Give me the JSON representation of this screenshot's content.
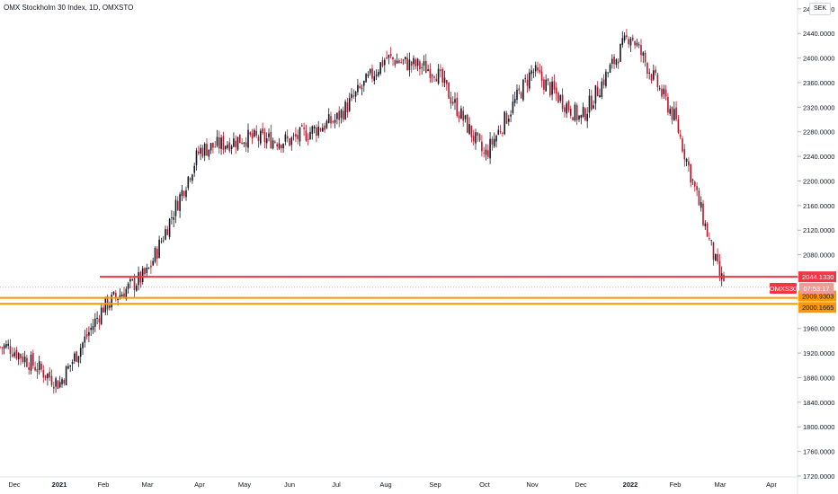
{
  "header": {
    "title": "OMX Stockholm 30 Index, 1D, OMXSTO"
  },
  "currency_button": {
    "label": "SEK"
  },
  "symbol_label": {
    "name": "OMXS30",
    "countdown": "07:53:17",
    "color": "#f23645"
  },
  "colors": {
    "up": "#26a69a",
    "down": "#ef5350",
    "candle_body": "#131722",
    "red_line": "#f23645",
    "orange_line": "#ff9800"
  },
  "chart_data": {
    "type": "candlestick",
    "y_ticks": [
      "1720.0000",
      "1760.0000",
      "1800.0000",
      "1840.0000",
      "1880.0000",
      "1920.0000",
      "1960.0000",
      "2080.0000",
      "2120.0000",
      "2160.0000",
      "2200.0000",
      "2240.0000",
      "2280.0000",
      "2320.0000",
      "2360.0000",
      "2400.0000",
      "2440.0000",
      "2480.0000"
    ],
    "ylim": [
      1720,
      2490
    ],
    "x_labels": [
      "Dec",
      "2021",
      "Feb",
      "Mar",
      "Apr",
      "May",
      "Jun",
      "Jul",
      "Aug",
      "Sep",
      "Oct",
      "Nov",
      "Dec",
      "2022",
      "Feb",
      "Mar",
      "Apr"
    ],
    "bold_x_labels": [
      "2021",
      "2022"
    ],
    "horizontal_levels": [
      {
        "value": 2044.133,
        "label": "2044.1330",
        "color": "#f23645",
        "start_month": "Feb 2021"
      },
      {
        "value": 2009.9303,
        "label": "2009.9303",
        "color": "#ff9800",
        "start_month": "Dec 2020"
      },
      {
        "value": 2000.1665,
        "label": "2000.1665",
        "color": "#ff9800",
        "start_month": "Dec 2020"
      }
    ],
    "current_price": 2027,
    "price_path_months": [
      "Dec",
      "Jan",
      "Feb",
      "Mar",
      "Apr",
      "May",
      "Jun",
      "Jul",
      "Aug",
      "Sep",
      "Oct",
      "Nov",
      "Dec",
      "Jan",
      "Feb",
      "Mar"
    ],
    "price_path_approx": [
      1930,
      1870,
      1995,
      2050,
      2250,
      2270,
      2265,
      2300,
      2400,
      2380,
      2240,
      2380,
      2300,
      2440,
      2300,
      2040
    ]
  }
}
